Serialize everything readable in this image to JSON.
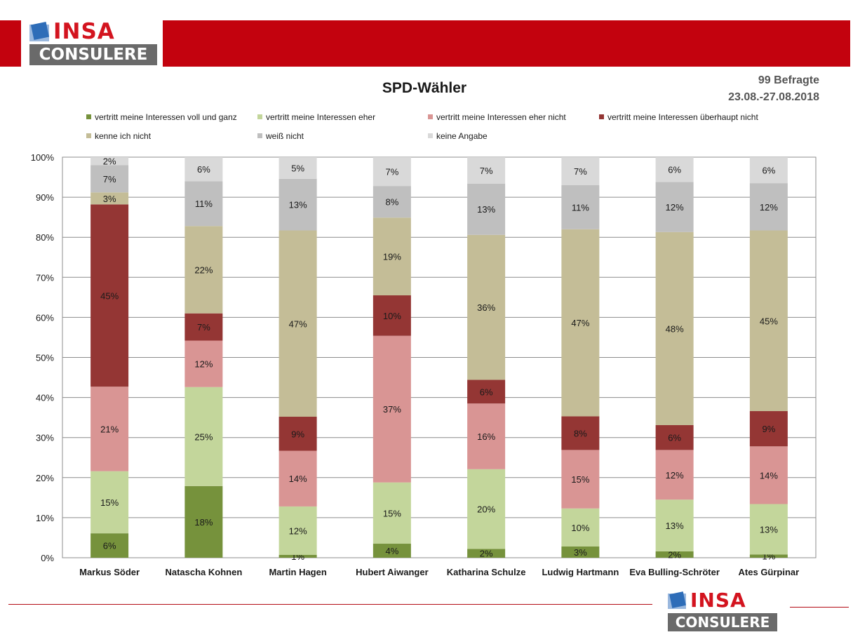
{
  "brand": {
    "logo_top": "INSA",
    "logo_bottom": "CONSULERE",
    "accent": "#c3020e",
    "logo_text_color": "#d3141f",
    "logo_bar_color": "#6a6a6a"
  },
  "header": {
    "title": "SPD-Wähler",
    "respondents": "99 Befragte",
    "period": "23.08.-27.08.2018"
  },
  "chart_data": {
    "type": "bar",
    "stacked": true,
    "title": "SPD-Wähler",
    "xlabel": "",
    "ylabel": "",
    "ylim": [
      0,
      100
    ],
    "yticks": [
      "0%",
      "10%",
      "20%",
      "30%",
      "40%",
      "50%",
      "60%",
      "70%",
      "80%",
      "90%",
      "100%"
    ],
    "grid": true,
    "legend_position": "top",
    "categories": [
      "Markus Söder",
      "Natascha Kohnen",
      "Martin Hagen",
      "Hubert Aiwanger",
      "Katharina Schulze",
      "Ludwig Hartmann",
      "Eva Bulling-Schröter",
      "Ates Gürpinar"
    ],
    "series": [
      {
        "name": "vertritt meine Interessen voll und ganz",
        "color": "#76923c",
        "values": [
          6,
          18,
          1,
          4,
          2,
          3,
          2,
          1
        ],
        "heights": [
          6.1,
          17.9,
          0.7,
          3.5,
          2.2,
          2.8,
          1.6,
          0.8
        ]
      },
      {
        "name": "vertritt meine Interessen eher",
        "color": "#c3d69b",
        "values": [
          15,
          25,
          12,
          15,
          20,
          10,
          13,
          13
        ],
        "heights": [
          15.5,
          24.7,
          12.1,
          15.3,
          19.9,
          9.5,
          12.9,
          12.6
        ]
      },
      {
        "name": "vertritt meine Interessen eher nicht",
        "color": "#d99594",
        "values": [
          21,
          12,
          14,
          37,
          16,
          15,
          12,
          14
        ],
        "heights": [
          21.1,
          11.6,
          13.9,
          36.6,
          16.4,
          14.6,
          12.4,
          14.4
        ]
      },
      {
        "name": "vertritt meine Interessen überhaupt nicht",
        "color": "#943634",
        "values": [
          45,
          7,
          9,
          10,
          6,
          8,
          6,
          9
        ],
        "heights": [
          45.5,
          6.8,
          8.5,
          10.1,
          5.9,
          8.4,
          6.2,
          8.8
        ]
      },
      {
        "name": "kenne ich nicht",
        "color": "#c4bd97",
        "values": [
          3,
          22,
          47,
          19,
          36,
          47,
          48,
          45
        ],
        "heights": [
          3.0,
          21.8,
          46.5,
          19.4,
          36.2,
          46.7,
          48.2,
          45.1
        ]
      },
      {
        "name": "weiß nicht",
        "color": "#bfbfbf",
        "values": [
          7,
          11,
          13,
          8,
          13,
          11,
          12,
          12
        ],
        "heights": [
          6.8,
          11.2,
          12.9,
          7.9,
          12.8,
          11.0,
          12.5,
          11.8
        ]
      },
      {
        "name": "keine Angabe",
        "color": "#d9d9d9",
        "values": [
          2,
          6,
          5,
          7,
          7,
          7,
          6,
          6
        ],
        "heights": [
          2.0,
          6.0,
          5.4,
          7.2,
          6.6,
          7.0,
          6.2,
          6.5
        ]
      }
    ]
  }
}
